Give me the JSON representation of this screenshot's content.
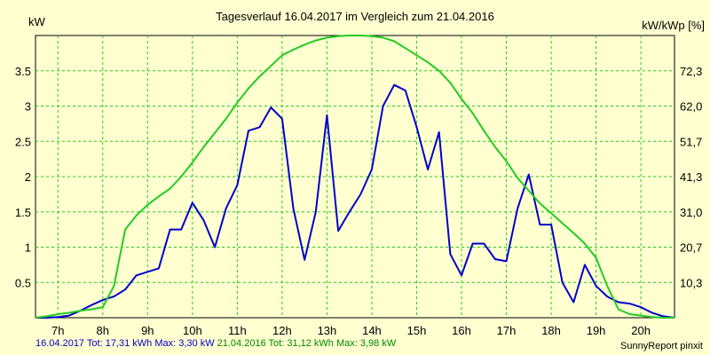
{
  "chart_data": {
    "type": "line",
    "title": "Tagesverlauf 16.04.2017 im Vergleich zum 21.04.2016",
    "ylabel": "kW",
    "y2label": "kW/kWp [%]",
    "x_ticks": [
      "7h",
      "8h",
      "9h",
      "10h",
      "11h",
      "12h",
      "13h",
      "14h",
      "15h",
      "16h",
      "17h",
      "18h",
      "19h",
      "20h"
    ],
    "xlim": [
      6.5,
      20.75
    ],
    "ylim": [
      0,
      4.0
    ],
    "y_ticks": [
      0.5,
      1,
      1.5,
      2,
      2.5,
      3,
      3.5
    ],
    "y_tick_labels": [
      "0.5",
      "1",
      "1.5",
      "2",
      "2.5",
      "3",
      "3.5"
    ],
    "y2_ticks": [
      0.5,
      1.0,
      1.5,
      2.0,
      2.5,
      3.0,
      3.5
    ],
    "y2_tick_labels": [
      "10,3",
      "20,7",
      "31,0",
      "41,3",
      "51,7",
      "62,0",
      "72,3"
    ],
    "grid": true,
    "series": [
      {
        "name": "16.04.2017",
        "color": "#0000cc",
        "x": [
          6.5,
          6.75,
          7.0,
          7.25,
          7.5,
          7.75,
          8.0,
          8.25,
          8.5,
          8.75,
          9.0,
          9.25,
          9.5,
          9.75,
          10.0,
          10.25,
          10.5,
          10.75,
          11.0,
          11.25,
          11.5,
          11.75,
          12.0,
          12.25,
          12.5,
          12.75,
          13.0,
          13.25,
          13.5,
          13.75,
          14.0,
          14.25,
          14.5,
          14.75,
          15.0,
          15.25,
          15.5,
          15.75,
          16.0,
          16.25,
          16.5,
          16.75,
          17.0,
          17.25,
          17.5,
          17.75,
          18.0,
          18.25,
          18.5,
          18.75,
          19.0,
          19.25,
          19.5,
          19.75,
          20.0,
          20.25,
          20.5,
          20.75
        ],
        "values": [
          0,
          0,
          0.01,
          0.03,
          0.1,
          0.18,
          0.25,
          0.3,
          0.4,
          0.6,
          0.65,
          0.7,
          1.25,
          1.25,
          1.63,
          1.38,
          1.0,
          1.55,
          1.88,
          2.65,
          2.7,
          2.98,
          2.82,
          1.55,
          0.82,
          1.5,
          2.87,
          1.23,
          1.5,
          1.75,
          2.1,
          3.0,
          3.3,
          3.22,
          2.7,
          2.1,
          2.63,
          0.9,
          0.6,
          1.05,
          1.05,
          0.83,
          0.8,
          1.55,
          2.03,
          1.32,
          1.32,
          0.5,
          0.22,
          0.75,
          0.45,
          0.3,
          0.22,
          0.2,
          0.15,
          0.07,
          0.02,
          0
        ]
      },
      {
        "name": "21.04.2016",
        "color": "#22cc22",
        "x": [
          6.5,
          6.75,
          7.0,
          7.25,
          7.5,
          7.75,
          8.0,
          8.25,
          8.5,
          8.75,
          9.0,
          9.25,
          9.5,
          9.75,
          10.0,
          10.25,
          10.5,
          10.75,
          11.0,
          11.25,
          11.5,
          11.75,
          12.0,
          12.25,
          12.5,
          12.75,
          13.0,
          13.25,
          13.5,
          13.75,
          14.0,
          14.25,
          14.5,
          14.75,
          15.0,
          15.25,
          15.5,
          15.75,
          16.0,
          16.25,
          16.5,
          16.75,
          17.0,
          17.25,
          17.5,
          17.75,
          18.0,
          18.25,
          18.5,
          18.75,
          19.0,
          19.25,
          19.5,
          19.75,
          20.0,
          20.25,
          20.5,
          20.75
        ],
        "values": [
          0,
          0.02,
          0.05,
          0.07,
          0.1,
          0.12,
          0.15,
          0.45,
          1.25,
          1.45,
          1.6,
          1.72,
          1.83,
          2.0,
          2.2,
          2.42,
          2.62,
          2.82,
          3.05,
          3.25,
          3.42,
          3.57,
          3.72,
          3.8,
          3.87,
          3.93,
          3.97,
          3.99,
          4.0,
          4.0,
          3.99,
          3.97,
          3.92,
          3.82,
          3.72,
          3.62,
          3.5,
          3.33,
          3.1,
          2.9,
          2.65,
          2.42,
          2.22,
          1.98,
          1.8,
          1.62,
          1.48,
          1.34,
          1.2,
          1.05,
          0.85,
          0.45,
          0.12,
          0.05,
          0.03,
          0.01,
          0,
          0
        ]
      }
    ]
  },
  "footer": {
    "series1": "16.04.2017 Tot: 17,31 kWh Max: 3,30 kW",
    "series2": "21.04.2016 Tot: 31,12 kWh Max: 3,98 kW",
    "brand": "SunnyReport pinxit"
  }
}
